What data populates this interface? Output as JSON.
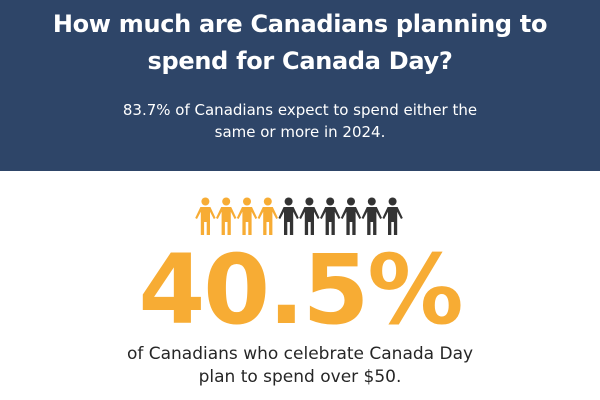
{
  "header": {
    "title_line1": "How much are Canadians planning to",
    "title_line2": "spend for Canada Day?",
    "subtitle_line1": "83.7% of Canadians expect to spend either the",
    "subtitle_line2": "same or more in 2024."
  },
  "pictogram": {
    "total": 10,
    "highlighted": 4,
    "highlight_color": "#f7ac34",
    "base_color": "#333333",
    "icon": "person-icon"
  },
  "stat": {
    "value": "40.5%",
    "color": "#f7ac34"
  },
  "caption": {
    "line1": "of Canadians who celebrate Canada Day",
    "line2": "plan to spend over $50."
  },
  "colors": {
    "header_bg": "#2e4568",
    "accent": "#f7ac34",
    "text_dark": "#262626"
  }
}
